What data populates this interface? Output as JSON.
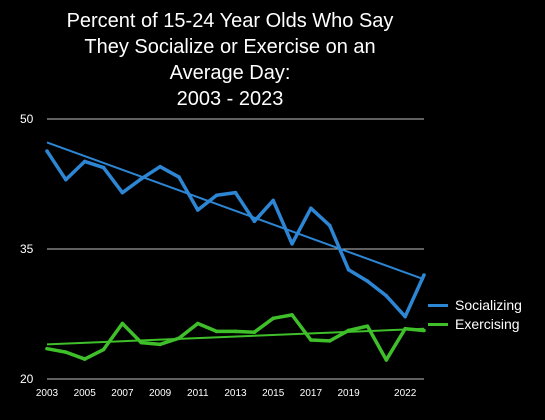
{
  "colors": {
    "socializing": "#2d86d4",
    "exercising": "#3fbf2a",
    "background": "#000000",
    "grid": "#ffffff"
  },
  "chart_data": {
    "type": "line",
    "title_lines": [
      "Percent of 15-24 Year Olds Who Say",
      "They Socialize or Exercise on an",
      "Average Day:",
      "2003 - 2023"
    ],
    "xlabel": "",
    "ylabel": "",
    "xlim": [
      2003,
      2023
    ],
    "ylim": [
      20,
      50
    ],
    "yticks": [
      20,
      35,
      50
    ],
    "xticks": [
      2003,
      2005,
      2007,
      2009,
      2011,
      2013,
      2015,
      2017,
      2019,
      2022
    ],
    "grid": "horizontal",
    "legend_position": "right",
    "x": [
      2003,
      2004,
      2005,
      2006,
      2007,
      2008,
      2009,
      2010,
      2011,
      2012,
      2013,
      2014,
      2015,
      2016,
      2017,
      2018,
      2019,
      2020,
      2021,
      2022,
      2023
    ],
    "series": [
      {
        "name": "Socializing",
        "color_key": "socializing",
        "values": [
          46.3,
          43.0,
          45.1,
          44.4,
          41.5,
          43.1,
          44.5,
          43.3,
          39.5,
          41.2,
          41.5,
          38.2,
          40.6,
          35.6,
          39.7,
          37.7,
          32.6,
          31.3,
          29.6,
          27.2,
          32.0
        ],
        "trend": [
          47.3,
          31.5
        ]
      },
      {
        "name": "Exercising",
        "color_key": "exercising",
        "values": [
          23.5,
          23.1,
          22.3,
          23.4,
          26.4,
          24.2,
          24.0,
          24.7,
          26.4,
          25.5,
          25.5,
          25.4,
          27.0,
          27.4,
          24.5,
          24.4,
          25.6,
          26.1,
          22.2,
          25.8,
          25.6
        ],
        "trend": [
          24.0,
          25.8
        ]
      }
    ]
  }
}
